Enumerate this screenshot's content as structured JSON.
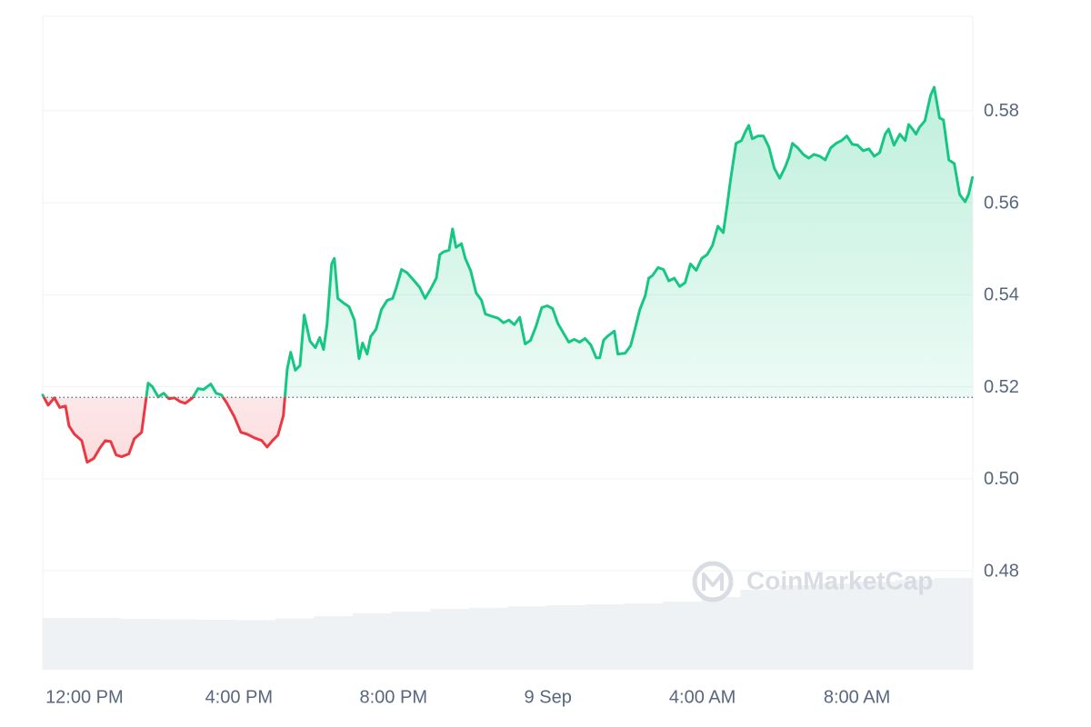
{
  "chart_data": {
    "type": "line",
    "watermark": "CoinMarketCap",
    "color_up": "#16c784",
    "color_down": "#ea3943",
    "baseline": 0.5177,
    "grid": true,
    "xlim": [
      10.92,
      35
    ],
    "ylim": [
      0.4585,
      0.6005
    ],
    "xticks": [
      {
        "value": 12,
        "label": "12:00 PM"
      },
      {
        "value": 16,
        "label": "4:00 PM"
      },
      {
        "value": 20,
        "label": "8:00 PM"
      },
      {
        "value": 24,
        "label": "9 Sep"
      },
      {
        "value": 28,
        "label": "4:00 AM"
      },
      {
        "value": 32,
        "label": "8:00 AM"
      }
    ],
    "yticks": [
      0.48,
      {
        "value": 0.5,
        "label": "0.50"
      },
      0.52,
      0.54,
      0.56,
      0.58
    ],
    "x": [
      10.92,
      11.06,
      11.22,
      11.36,
      11.51,
      11.6,
      11.74,
      11.93,
      12.07,
      12.24,
      12.4,
      12.54,
      12.68,
      12.82,
      12.96,
      13.15,
      13.29,
      13.48,
      13.65,
      13.76,
      13.91,
      14.05,
      14.19,
      14.33,
      14.47,
      14.61,
      14.8,
      14.94,
      15.08,
      15.27,
      15.41,
      15.55,
      15.69,
      15.88,
      16.05,
      16.21,
      16.4,
      16.59,
      16.73,
      16.87,
      17.01,
      17.15,
      17.25,
      17.34,
      17.46,
      17.58,
      17.69,
      17.84,
      17.98,
      18.09,
      18.19,
      18.28,
      18.4,
      18.47,
      18.56,
      18.71,
      18.85,
      18.99,
      19.11,
      19.2,
      19.32,
      19.41,
      19.55,
      19.69,
      19.84,
      19.98,
      20.07,
      20.21,
      20.35,
      20.54,
      20.68,
      20.82,
      20.96,
      21.11,
      21.2,
      21.29,
      21.44,
      21.53,
      21.62,
      21.76,
      21.86,
      22.0,
      22.14,
      22.28,
      22.38,
      22.52,
      22.71,
      22.85,
      22.99,
      23.13,
      23.27,
      23.41,
      23.55,
      23.69,
      23.84,
      23.98,
      24.12,
      24.26,
      24.4,
      24.54,
      24.68,
      24.82,
      24.96,
      25.11,
      25.25,
      25.34,
      25.44,
      25.53,
      25.72,
      25.81,
      26.0,
      26.14,
      26.24,
      26.38,
      26.52,
      26.61,
      26.71,
      26.85,
      26.99,
      27.13,
      27.27,
      27.41,
      27.55,
      27.69,
      27.84,
      27.98,
      28.12,
      28.26,
      28.4,
      28.54,
      28.64,
      28.73,
      28.87,
      29.01,
      29.11,
      29.2,
      29.29,
      29.44,
      29.58,
      29.72,
      29.86,
      30.0,
      30.14,
      30.24,
      30.33,
      30.47,
      30.61,
      30.75,
      30.89,
      31.04,
      31.18,
      31.32,
      31.46,
      31.6,
      31.74,
      31.88,
      32.02,
      32.16,
      32.31,
      32.45,
      32.59,
      32.73,
      32.82,
      32.96,
      33.11,
      33.25,
      33.34,
      33.44,
      33.53,
      33.62,
      33.76,
      33.91,
      34.0,
      34.14,
      34.24,
      34.38,
      34.52,
      34.66,
      34.8,
      34.89,
      34.99
    ],
    "values": [
      0.5182,
      0.516,
      0.5176,
      0.5155,
      0.5158,
      0.5115,
      0.5097,
      0.5083,
      0.5036,
      0.5044,
      0.5067,
      0.5083,
      0.5081,
      0.5052,
      0.5048,
      0.5054,
      0.5087,
      0.5101,
      0.5208,
      0.52,
      0.5178,
      0.5186,
      0.5174,
      0.5176,
      0.5168,
      0.5164,
      0.5176,
      0.5196,
      0.5194,
      0.5206,
      0.5186,
      0.5182,
      0.5164,
      0.5135,
      0.5101,
      0.5097,
      0.5089,
      0.5083,
      0.5069,
      0.5083,
      0.5095,
      0.5137,
      0.5238,
      0.5275,
      0.5236,
      0.5246,
      0.5356,
      0.5299,
      0.5285,
      0.5307,
      0.5281,
      0.5335,
      0.5467,
      0.5479,
      0.5392,
      0.5382,
      0.5374,
      0.5345,
      0.5261,
      0.5295,
      0.5271,
      0.5309,
      0.5325,
      0.5368,
      0.5388,
      0.5392,
      0.5414,
      0.5455,
      0.5448,
      0.543,
      0.5416,
      0.5392,
      0.5412,
      0.5436,
      0.5487,
      0.5493,
      0.5497,
      0.5543,
      0.5503,
      0.5511,
      0.5479,
      0.5452,
      0.5404,
      0.5388,
      0.5358,
      0.5354,
      0.5349,
      0.5339,
      0.5345,
      0.5335,
      0.5351,
      0.5293,
      0.5301,
      0.5331,
      0.5372,
      0.5376,
      0.537,
      0.5337,
      0.5317,
      0.5297,
      0.5303,
      0.5297,
      0.5305,
      0.5291,
      0.5263,
      0.5263,
      0.5301,
      0.5309,
      0.5321,
      0.5271,
      0.5273,
      0.5289,
      0.5321,
      0.5368,
      0.5398,
      0.5436,
      0.5442,
      0.5459,
      0.5455,
      0.543,
      0.5436,
      0.5418,
      0.5426,
      0.5467,
      0.5453,
      0.5479,
      0.5487,
      0.5507,
      0.5549,
      0.5535,
      0.5594,
      0.5651,
      0.5729,
      0.5735,
      0.5754,
      0.5768,
      0.5739,
      0.5745,
      0.5745,
      0.5721,
      0.5675,
      0.5653,
      0.5677,
      0.5699,
      0.5729,
      0.5719,
      0.5705,
      0.5697,
      0.5705,
      0.5701,
      0.5693,
      0.5719,
      0.5729,
      0.5735,
      0.5745,
      0.5727,
      0.5725,
      0.5713,
      0.5717,
      0.5701,
      0.5709,
      0.5749,
      0.576,
      0.5725,
      0.5749,
      0.5735,
      0.577,
      0.576,
      0.5749,
      0.5764,
      0.5778,
      0.5834,
      0.5851,
      0.5784,
      0.578,
      0.5693,
      0.5685,
      0.5618,
      0.5602,
      0.5618,
      0.5655
    ],
    "volume": {
      "color": "#eff2f5",
      "ylim": [
        0,
        400
      ],
      "values": [
        31.7,
        31.7,
        31.2,
        30.8,
        30.6,
        30.4,
        31.5,
        32.8,
        34.5,
        35.6,
        37.2,
        38.0,
        38.9,
        39.5,
        40.0,
        40.6,
        41.7,
        44.5,
        48.9,
        51.7,
        52.8,
        53.9,
        55.0,
        56.2
      ]
    }
  }
}
